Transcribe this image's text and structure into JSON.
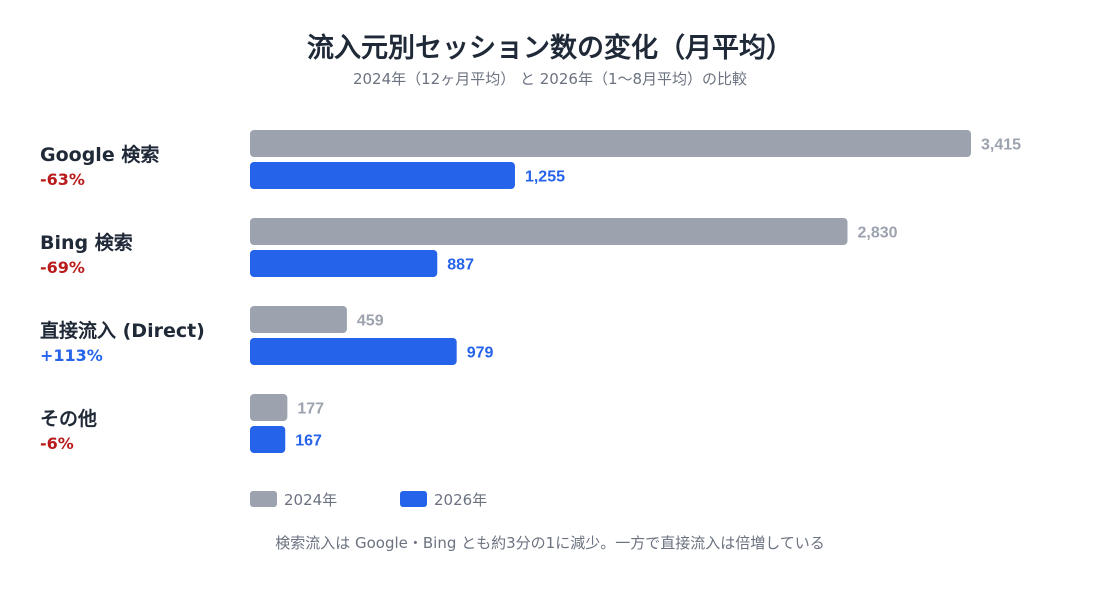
{
  "title": "流入元別セッション数の変化（月平均）",
  "subtitle": "2024年（12ヶ月平均） と 2026年（1〜8月平均）の比較",
  "note": "検索流入は Google・Bing とも約3分の1に減少。一方で直接流入は倍増している",
  "colors": {
    "series_2024": "#9ca3af",
    "series_2026": "#2563eb",
    "change_down": "#b91c1c",
    "change_up": "#2563eb"
  },
  "chart_data": {
    "type": "bar",
    "orientation": "horizontal",
    "title": "流入元別セッション数の変化（月平均）",
    "subtitle": "2024年（12ヶ月平均） と 2026年（1〜8月平均）の比較",
    "categories": [
      "Google 検索",
      "Bing 検索",
      "直接流入 (Direct)",
      "その他"
    ],
    "changes": [
      "-63%",
      "-69%",
      "+113%",
      "-6%"
    ],
    "change_direction": [
      "down",
      "down",
      "up",
      "down"
    ],
    "series": [
      {
        "name": "2024年",
        "values": [
          3415,
          2830,
          459,
          177
        ],
        "labels": [
          "3,415",
          "2,830",
          "459",
          "177"
        ]
      },
      {
        "name": "2026年",
        "values": [
          1255,
          887,
          979,
          167
        ],
        "labels": [
          "1,255",
          "887",
          "979",
          "167"
        ]
      }
    ],
    "xlim": [
      0,
      3415
    ],
    "legend": "bottom-left",
    "grid": false
  }
}
